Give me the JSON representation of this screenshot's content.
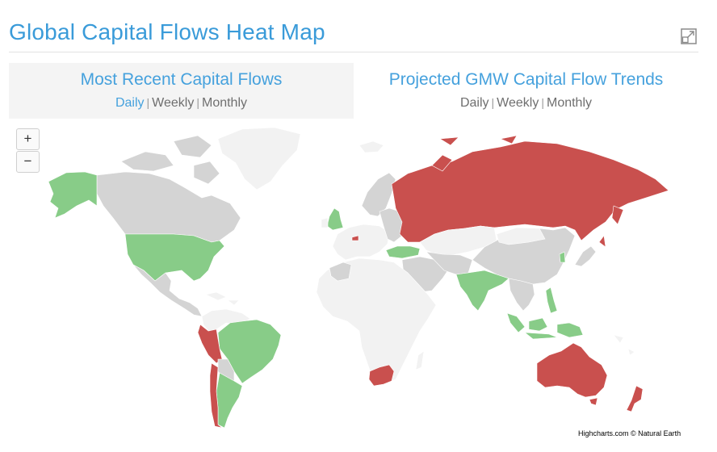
{
  "page": {
    "title": "Global Capital Flows Heat Map"
  },
  "tabs": [
    {
      "label": "Most Recent Capital Flows",
      "periods": [
        "Daily",
        "Weekly",
        "Monthly"
      ],
      "active_period": "Daily",
      "selected": true
    },
    {
      "label": "Projected GMW Capital Flow Trends",
      "periods": [
        "Daily",
        "Weekly",
        "Monthly"
      ],
      "active_period": null,
      "selected": false
    }
  ],
  "zoom": {
    "in_label": "+",
    "out_label": "−"
  },
  "credits": "Highcharts.com © Natural Earth",
  "colors": {
    "accent": "#3a9bd9",
    "inflow": "#88cc88",
    "outflow": "#c9504e",
    "neutral": "#d4d4d4",
    "no_data": "#f2f2f2"
  },
  "map": {
    "countries": [
      {
        "name": "Alaska (United States)",
        "status": "inflow"
      },
      {
        "name": "United States",
        "status": "inflow"
      },
      {
        "name": "Canada",
        "status": "neutral"
      },
      {
        "name": "Greenland",
        "status": "no_data"
      },
      {
        "name": "Mexico",
        "status": "neutral"
      },
      {
        "name": "Brazil",
        "status": "inflow"
      },
      {
        "name": "Argentina",
        "status": "inflow"
      },
      {
        "name": "Peru",
        "status": "outflow"
      },
      {
        "name": "Chile",
        "status": "outflow"
      },
      {
        "name": "United Kingdom",
        "status": "inflow"
      },
      {
        "name": "Switzerland",
        "status": "outflow"
      },
      {
        "name": "Turkey",
        "status": "inflow"
      },
      {
        "name": "Russia",
        "status": "outflow"
      },
      {
        "name": "China",
        "status": "neutral"
      },
      {
        "name": "India",
        "status": "inflow"
      },
      {
        "name": "Japan",
        "status": "outflow"
      },
      {
        "name": "Indonesia",
        "status": "inflow"
      },
      {
        "name": "Philippines",
        "status": "inflow"
      },
      {
        "name": "Australia",
        "status": "outflow"
      },
      {
        "name": "New Zealand",
        "status": "outflow"
      },
      {
        "name": "South Africa",
        "status": "outflow"
      },
      {
        "name": "Saudi Arabia",
        "status": "neutral"
      }
    ]
  }
}
